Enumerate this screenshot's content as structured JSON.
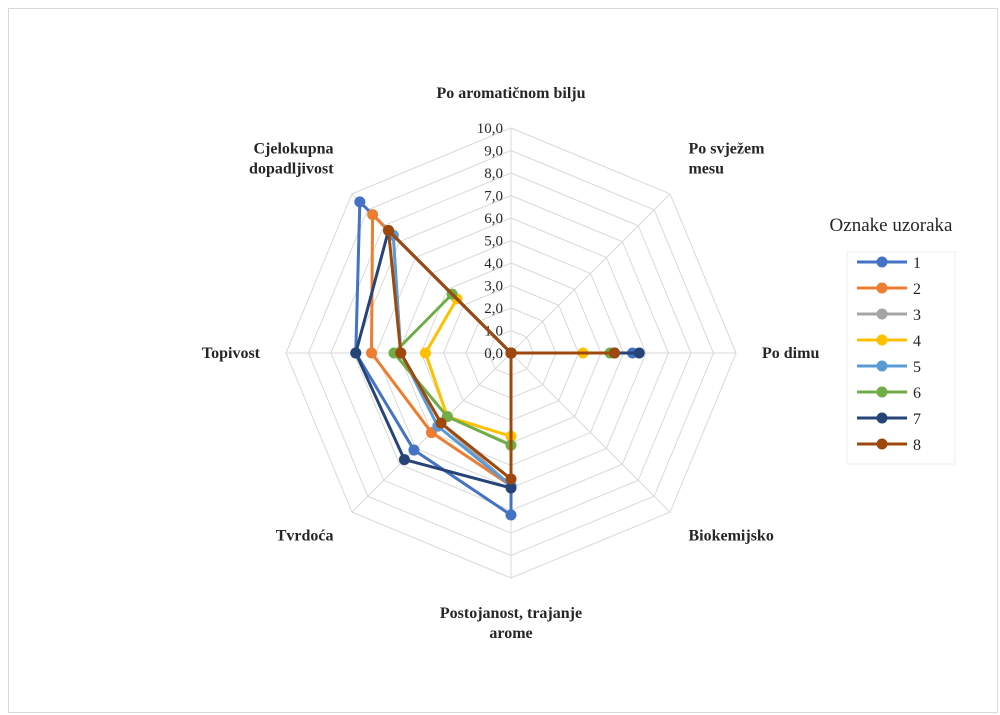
{
  "chart_data": {
    "type": "radar",
    "title": "",
    "axes": [
      "Po aromatičnom bilju",
      "Po svježem mesu",
      "Po dimu",
      "Biokemijsko",
      "Postojanost, trajanje arome",
      "Tvrdoća",
      "Topivost",
      "Cjelokupna dopadljivost"
    ],
    "axis_lines": [
      [
        "Po aromatičnom bilju"
      ],
      [
        "Po svježem",
        "mesu"
      ],
      [
        "Po dimu"
      ],
      [
        "Biokemijsko"
      ],
      [
        "Postojanost, trajanje",
        "arome"
      ],
      [
        "Tvrdoća"
      ],
      [
        "Topivost"
      ],
      [
        "Cjelokupna",
        "dopadljivost"
      ]
    ],
    "range": [
      0,
      10
    ],
    "ticks": [
      "0,0",
      "1,0",
      "2,0",
      "3,0",
      "4,0",
      "5,0",
      "6,0",
      "7,0",
      "8,0",
      "9,0",
      "10,0"
    ],
    "legend_title": "Oznake uzoraka",
    "legend_position": "right",
    "series": [
      {
        "name": "1",
        "color": "#4472c4",
        "values": [
          0,
          0,
          5.4,
          0,
          7.2,
          6.1,
          6.9,
          9.5
        ]
      },
      {
        "name": "2",
        "color": "#ed7d31",
        "values": [
          0,
          0,
          4.6,
          0,
          5.9,
          5.0,
          6.2,
          8.7
        ]
      },
      {
        "name": "3",
        "color": "#a5a5a5",
        "values": [
          0,
          0,
          4.6,
          0,
          5.9,
          4.4,
          4.9,
          7.4
        ]
      },
      {
        "name": "4",
        "color": "#ffc000",
        "values": [
          0,
          0,
          3.2,
          0,
          3.7,
          4.0,
          3.8,
          3.4
        ]
      },
      {
        "name": "5",
        "color": "#5b9bd5",
        "values": [
          0,
          0,
          4.6,
          0,
          5.9,
          4.6,
          4.9,
          7.4
        ]
      },
      {
        "name": "6",
        "color": "#70ad47",
        "values": [
          0,
          0,
          4.4,
          0,
          4.1,
          4.0,
          5.2,
          3.7
        ]
      },
      {
        "name": "7",
        "color": "#264478",
        "values": [
          0,
          0,
          5.7,
          0,
          6.0,
          6.7,
          6.9,
          7.7
        ]
      },
      {
        "name": "8",
        "color": "#9e480e",
        "values": [
          0,
          0,
          4.6,
          0,
          5.6,
          4.4,
          4.9,
          7.7
        ]
      }
    ]
  }
}
